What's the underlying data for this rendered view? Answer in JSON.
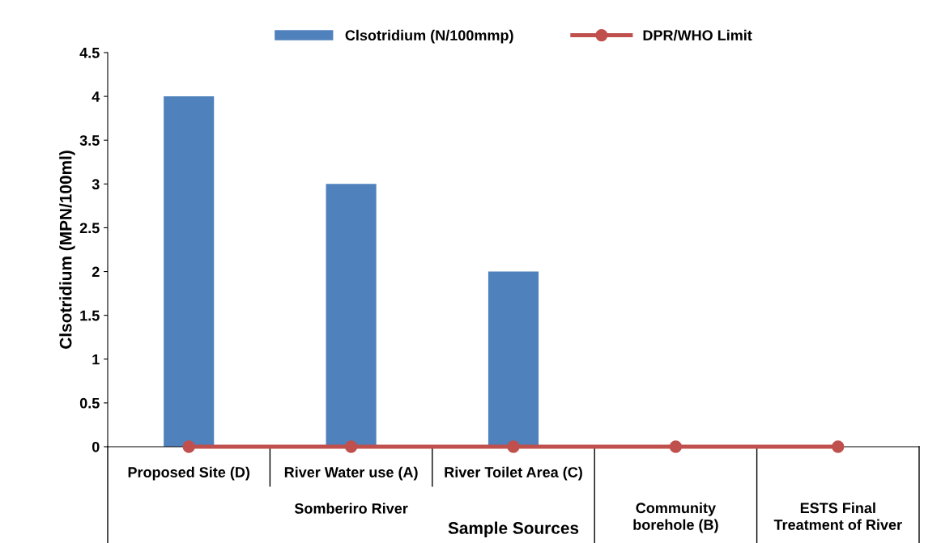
{
  "chart_data": {
    "type": "bar",
    "categories": [
      "Proposed Site (D)",
      "River Water use (A)",
      "River Toilet Area (C)",
      null,
      null
    ],
    "series": [
      {
        "name": "Clsotridium (N/100mmp)",
        "color": "#4f81bd",
        "values": [
          4,
          3,
          2,
          0,
          0
        ]
      },
      {
        "name": "DPR/WHO Limit",
        "type": "line",
        "color": "#c0504d",
        "values": [
          0,
          0,
          0,
          0,
          0
        ],
        "marker": "circle"
      }
    ],
    "xlabel": "Sample Sources",
    "ylabel": "Clsotridium (MPN/100ml)",
    "annotations": [
      "Somberiro River",
      "Community\nborehole (B)",
      "ESTS Final\nTreatment of River"
    ],
    "ylim": [
      0,
      4.5
    ],
    "yticks": [
      0,
      0.5,
      1,
      1.5,
      2,
      2.5,
      3,
      3.5,
      4,
      4.5
    ],
    "grid": false,
    "legend": "top"
  }
}
